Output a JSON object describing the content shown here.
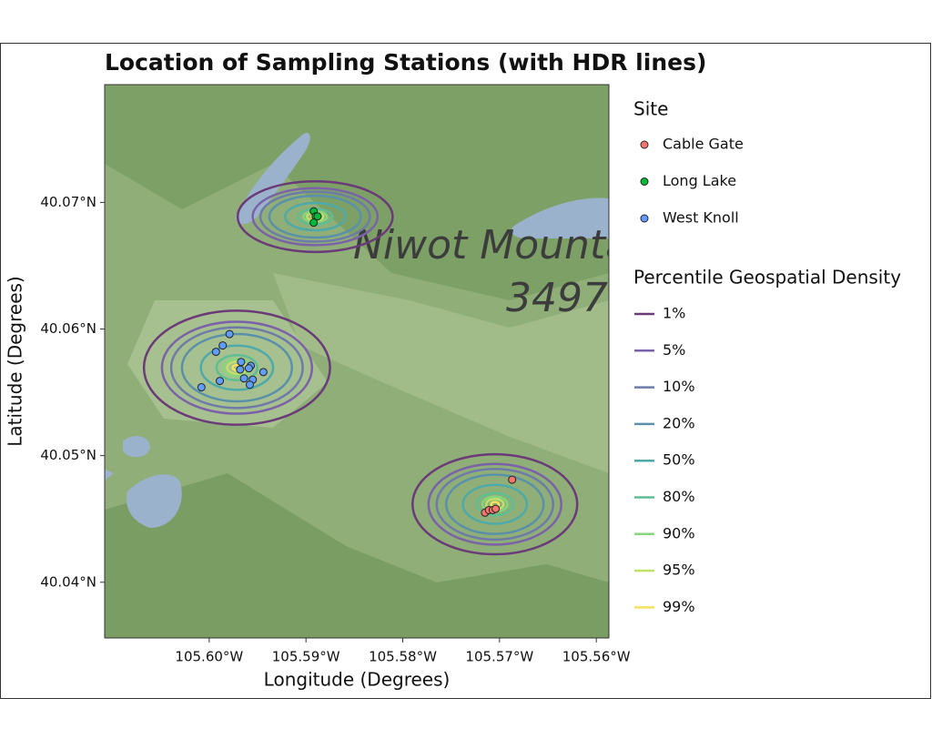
{
  "chart_data": {
    "type": "scatter",
    "title": "Location of Sampling Stations (with HDR lines)",
    "x_label": "Longitude (Degrees)",
    "y_label": "Latitude (Degrees)",
    "xlim": [
      -105.6108,
      -105.5587
    ],
    "ylim": [
      40.0356,
      40.0793
    ],
    "xticks": [
      {
        "value": -105.6,
        "label": "105.60°W"
      },
      {
        "value": -105.59,
        "label": "105.59°W"
      },
      {
        "value": -105.58,
        "label": "105.58°W"
      },
      {
        "value": -105.57,
        "label": "105.57°W"
      },
      {
        "value": -105.56,
        "label": "105.56°W"
      }
    ],
    "yticks": [
      {
        "value": 40.04,
        "label": "40.04°N"
      },
      {
        "value": 40.05,
        "label": "40.05°N"
      },
      {
        "value": 40.06,
        "label": "40.06°N"
      },
      {
        "value": 40.07,
        "label": "40.07°N"
      }
    ],
    "legend_title": "Site",
    "series": [
      {
        "name": "Cable Gate",
        "color": "#f8766d",
        "x": [
          -105.5687,
          -105.5715,
          -105.5711,
          -105.5707,
          -105.5704
        ],
        "values": [
          40.0481,
          40.0455,
          40.0457,
          40.0457,
          40.0458
        ]
      },
      {
        "name": "Long Lake",
        "color": "#00ba38",
        "x": [
          -105.5892,
          -105.589,
          -105.5892,
          -105.5888
        ],
        "values": [
          40.0693,
          40.0689,
          40.0684,
          40.0689
        ]
      },
      {
        "name": "West Knoll",
        "color": "#619cff",
        "x": [
          -105.5979,
          -105.5986,
          -105.5993,
          -105.5967,
          -105.5957,
          -105.5968,
          -105.5959,
          -105.5944,
          -105.5964,
          -105.5955,
          -105.5989,
          -105.5958,
          -105.6008
        ],
        "values": [
          40.0596,
          40.0587,
          40.0582,
          40.0574,
          40.0571,
          40.0568,
          40.0569,
          40.0566,
          40.0561,
          40.056,
          40.0559,
          40.0556,
          40.0554
        ]
      }
    ],
    "contour_legend_title": "Percentile Geospatial Density",
    "contour_levels": [
      {
        "name": "1%",
        "color": "#6b3a78"
      },
      {
        "name": "5%",
        "color": "#7b62a8"
      },
      {
        "name": "10%",
        "color": "#6e7ba9"
      },
      {
        "name": "20%",
        "color": "#5b90aa"
      },
      {
        "name": "50%",
        "color": "#4eaaa8"
      },
      {
        "name": "80%",
        "color": "#5dbf93"
      },
      {
        "name": "90%",
        "color": "#86d77c"
      },
      {
        "name": "95%",
        "color": "#bfe06a"
      },
      {
        "name": "99%",
        "color": "#f4e25a"
      }
    ],
    "map_labels": [
      "Niwot Mounta",
      "3497"
    ]
  }
}
